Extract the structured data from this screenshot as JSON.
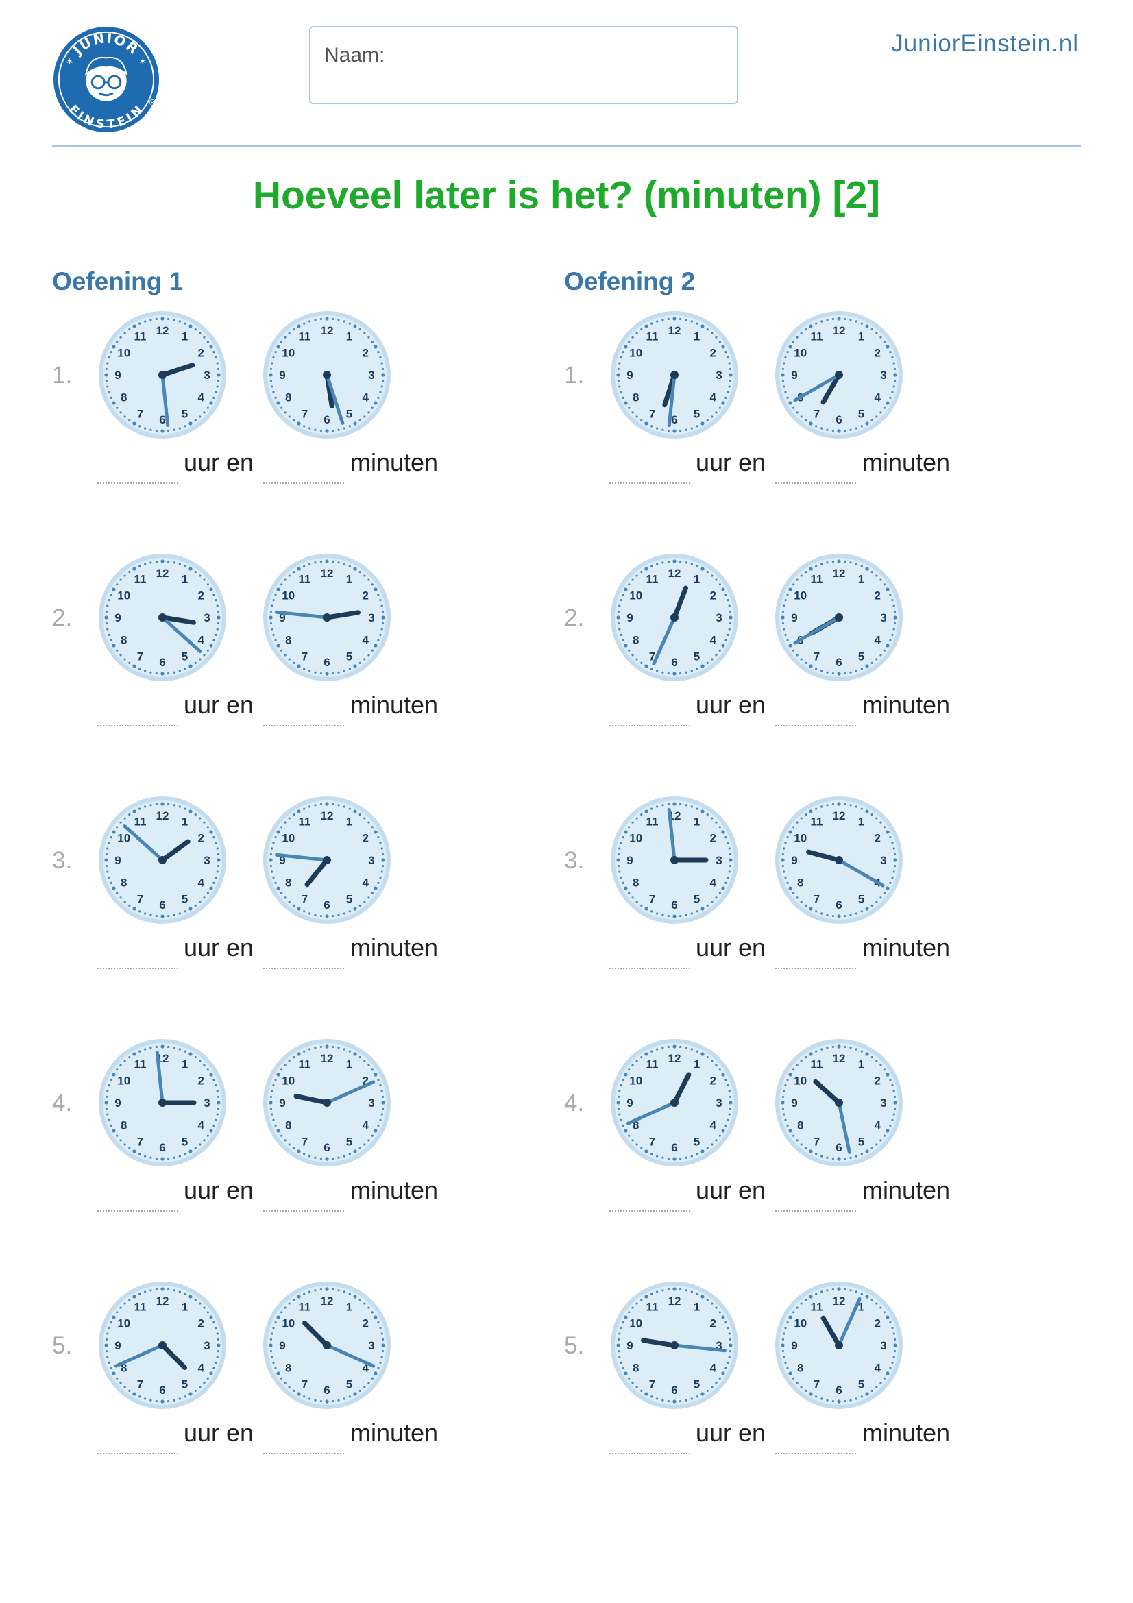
{
  "header": {
    "logo": {
      "icon": "junior-einstein-logo",
      "top_text": "JUNIOR",
      "bottom_text": "EINSTEIN",
      "registered": "®"
    },
    "name_label": "Naam:",
    "site_url": "JuniorEinstein.nl"
  },
  "title": "Hoeveel later is het? (minuten) [2]",
  "labels": {
    "hours": "uur en",
    "minutes": "minuten"
  },
  "colors": {
    "title": "#1eaa2a",
    "section_title": "#3b78a8",
    "clock_face": "#dcedf7",
    "clock_ring": "#c3dcee",
    "hour_hand": "#1c3c5a",
    "minute_hand": "#4a86b5",
    "numerals": "#1c3c5a",
    "ticks": "#4a86b5"
  },
  "clock_numerals": [
    "12",
    "1",
    "2",
    "3",
    "4",
    "5",
    "6",
    "7",
    "8",
    "9",
    "10",
    "11"
  ],
  "sections": [
    {
      "title": "Oefening 1",
      "exercises": [
        {
          "num": "1.",
          "clocks": [
            {
              "hour": 2.4,
              "minute": 29
            },
            {
              "hour": 5.7,
              "minute": 27
            }
          ]
        },
        {
          "num": "2.",
          "clocks": [
            {
              "hour": 3.3,
              "minute": 22
            },
            {
              "hour": 2.7,
              "minute": 46
            }
          ]
        },
        {
          "num": "3.",
          "clocks": [
            {
              "hour": 1.8,
              "minute": 52
            },
            {
              "hour": 7.3,
              "minute": 46
            }
          ]
        },
        {
          "num": "4.",
          "clocks": [
            {
              "hour": 3.0,
              "minute": 59
            },
            {
              "hour": 9.4,
              "minute": 11
            }
          ]
        },
        {
          "num": "5.",
          "clocks": [
            {
              "hour": 4.5,
              "minute": 41
            },
            {
              "hour": 10.5,
              "minute": 19
            }
          ]
        }
      ]
    },
    {
      "title": "Oefening 2",
      "exercises": [
        {
          "num": "1.",
          "clocks": [
            {
              "hour": 6.6,
              "minute": 31
            },
            {
              "hour": 7.0,
              "minute": 40
            }
          ]
        },
        {
          "num": "2.",
          "clocks": [
            {
              "hour": 0.7,
              "minute": 34
            },
            {
              "hour": 8.0,
              "minute": 40
            }
          ]
        },
        {
          "num": "3.",
          "clocks": [
            {
              "hour": 3.0,
              "minute": 59
            },
            {
              "hour": 9.5,
              "minute": 20
            }
          ]
        },
        {
          "num": "4.",
          "clocks": [
            {
              "hour": 0.9,
              "minute": 41
            },
            {
              "hour": 10.4,
              "minute": 28
            }
          ]
        },
        {
          "num": "5.",
          "clocks": [
            {
              "hour": 9.3,
              "minute": 16
            },
            {
              "hour": 11.0,
              "minute": 4
            }
          ]
        }
      ]
    }
  ]
}
